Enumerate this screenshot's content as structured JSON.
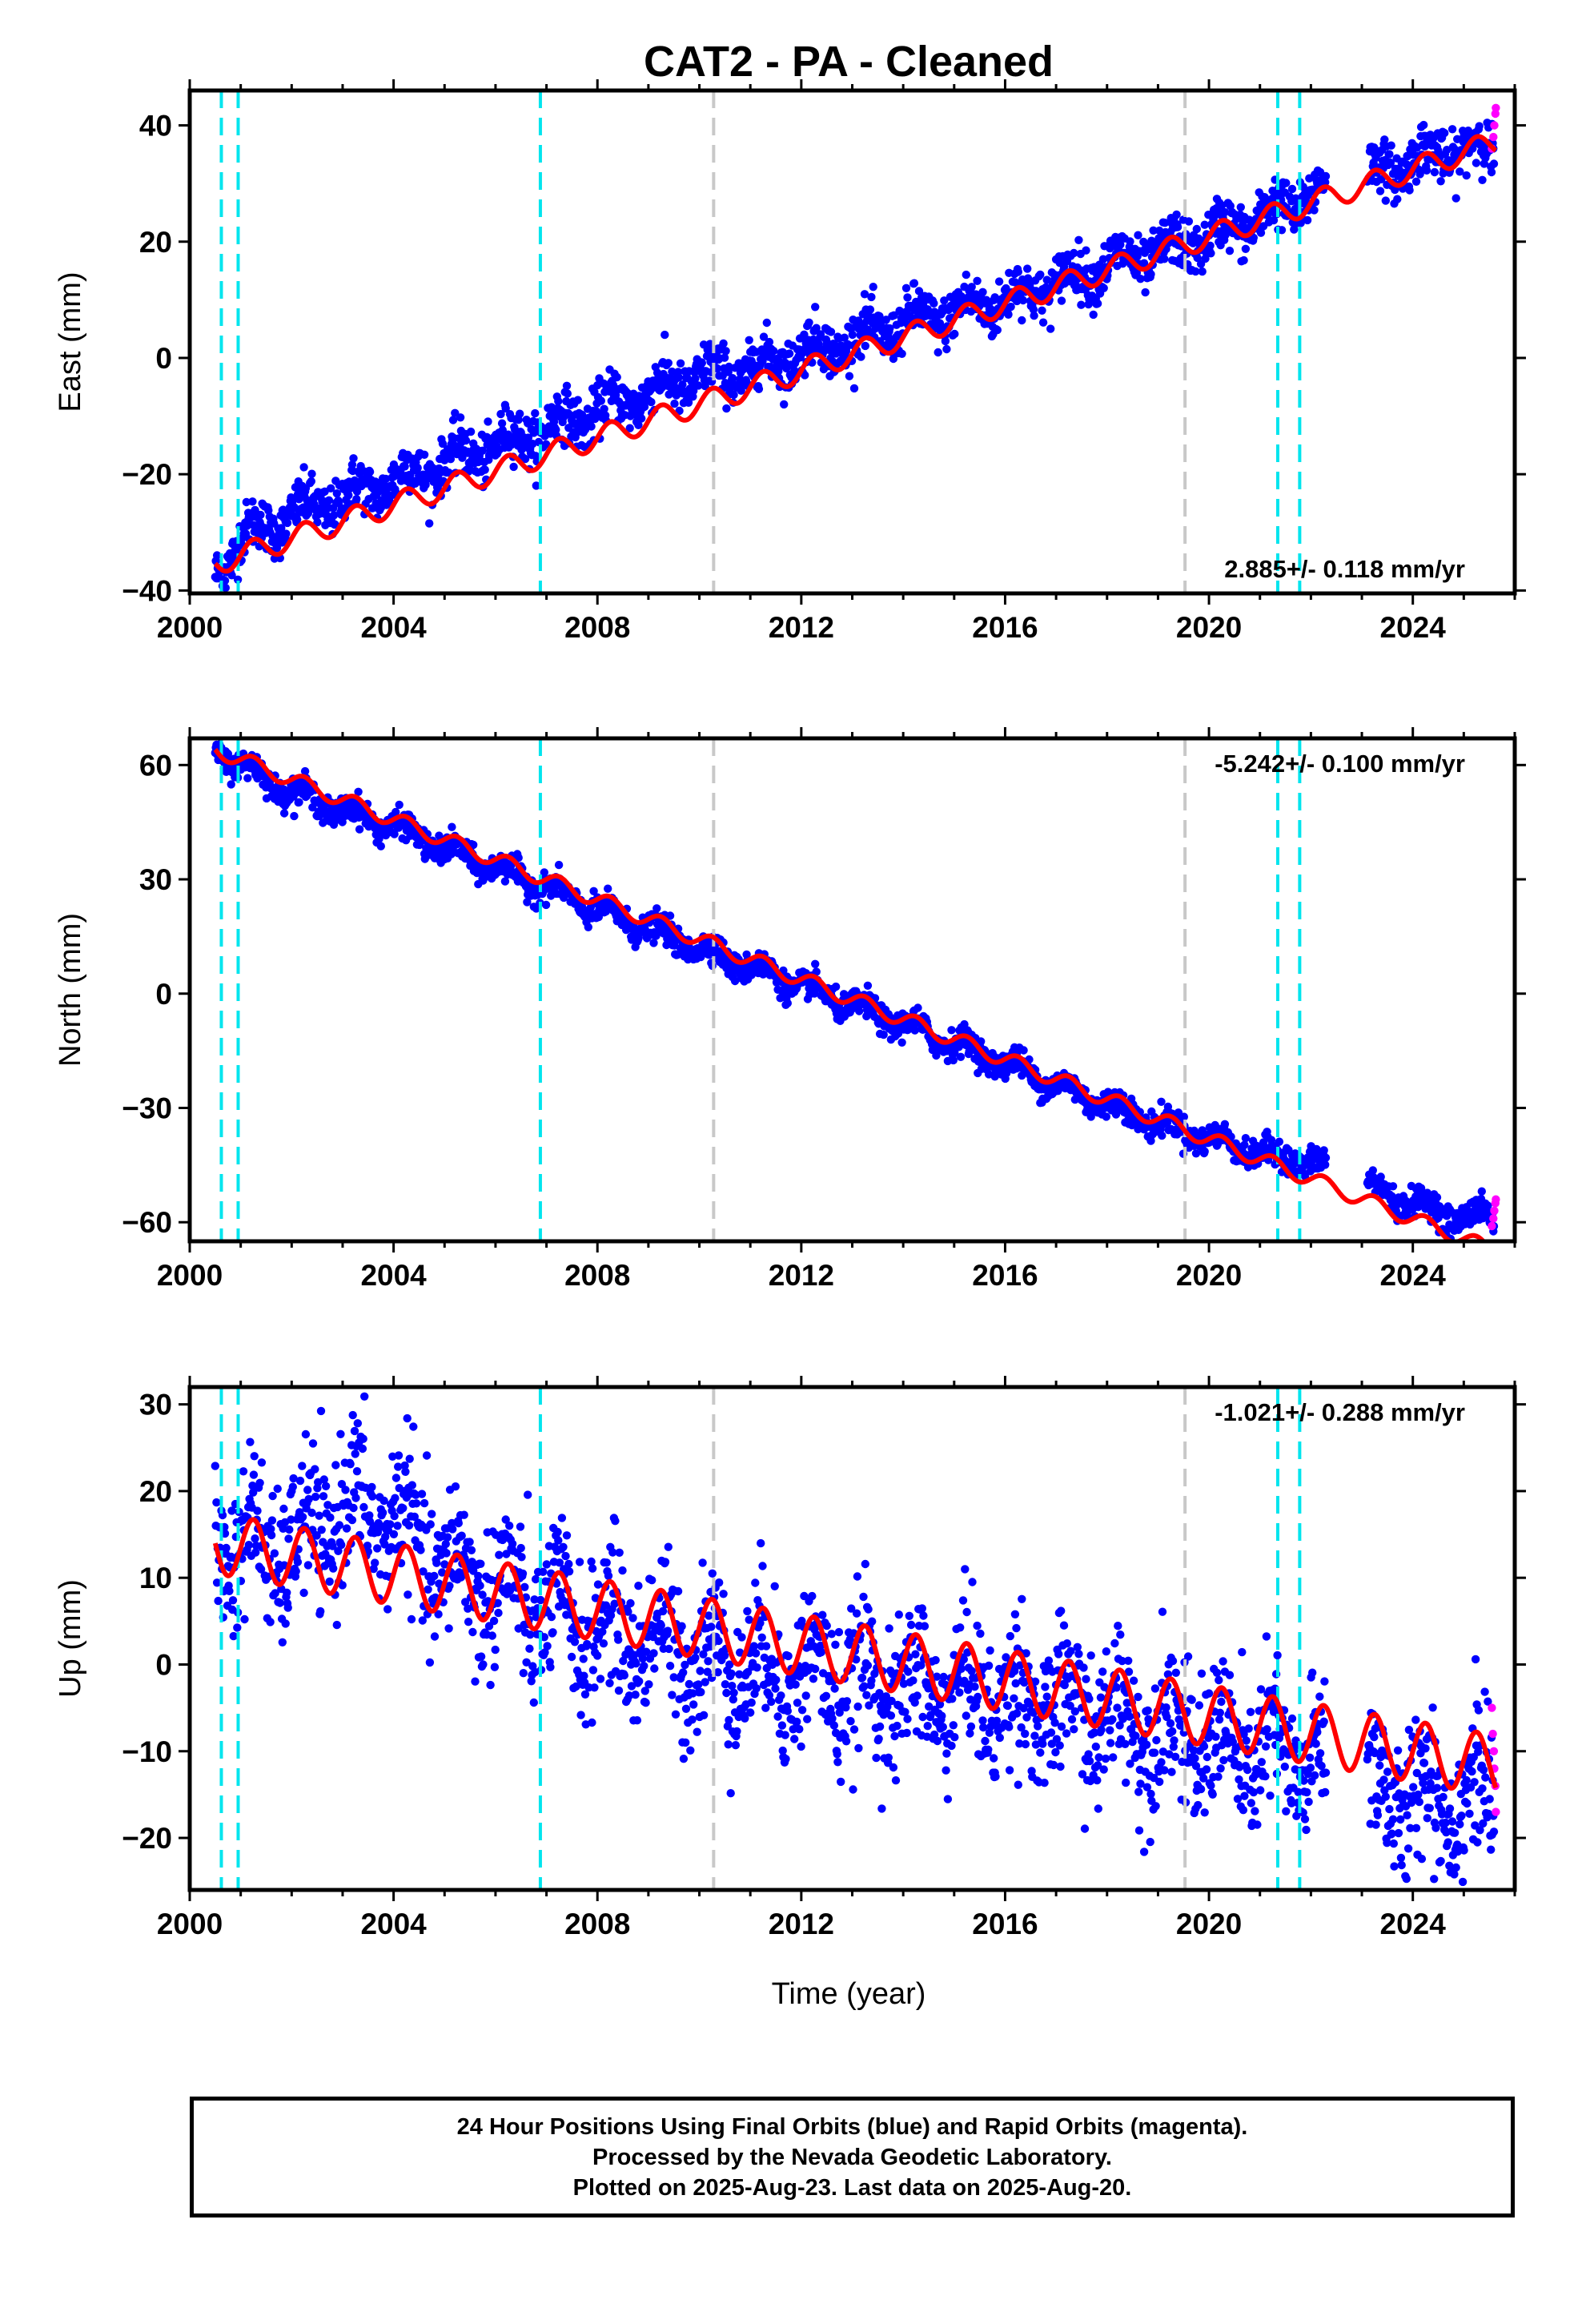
{
  "title": "CAT2  - PA - Cleaned",
  "colors": {
    "final_points": "#0000ff",
    "rapid_points": "#ff00ff",
    "model_line": "#ff0000",
    "equipment_change": "#00e5ee",
    "earthquake_line": "#c8c8c8",
    "frame": "#000000"
  },
  "shared_axis": {
    "xlabel": "Time (year)",
    "xlim": [
      2000,
      2026
    ],
    "xticks": [
      "2000",
      "2004",
      "2008",
      "2012",
      "2016",
      "2020",
      "2024"
    ]
  },
  "equipment_change_years": [
    2000.62,
    2000.95,
    2006.88,
    2021.35,
    2021.78
  ],
  "earthquake_line_years": [
    2010.28,
    2019.53
  ],
  "caption": {
    "line1": "24 Hour Positions Using Final Orbits (blue) and Rapid Orbits (magenta).",
    "line2": "Processed by the Nevada Geodetic Laboratory.",
    "line3": "Plotted on 2025-Aug-23. Last data on 2025-Aug-20."
  },
  "chart_data": [
    {
      "type": "scatter",
      "component": "East",
      "ylabel": "East (mm)",
      "ylim": [
        -40.5,
        46
      ],
      "yticks": [
        "40",
        "20",
        "0",
        "−20",
        "−40"
      ],
      "ytick_values": [
        40,
        20,
        0,
        -20,
        -40
      ],
      "rate_label": "2.885+/- 0.118 mm/yr",
      "rate_position": "bottom-right",
      "series": [
        {
          "name": "Final Orbits (blue)",
          "x": [
            2000.5,
            2001.0,
            2002.0,
            2003.0,
            2004.0,
            2005.0,
            2006.0,
            2007.0,
            2008.0,
            2009.0,
            2010.0,
            2011.0,
            2012.0,
            2013.0,
            2014.0,
            2015.0,
            2016.0,
            2017.0,
            2018.0,
            2019.0,
            2020.0,
            2021.0,
            2022.0,
            2023.0,
            2024.0,
            2025.0,
            2025.6
          ],
          "y": [
            -37,
            -31,
            -27,
            -24,
            -21,
            -18,
            -15,
            -12,
            -9,
            -6,
            -3,
            -2,
            1,
            3,
            6,
            8,
            10,
            13,
            16,
            18,
            21,
            24,
            28,
            31,
            34,
            36,
            36
          ],
          "scatter": 2.2
        },
        {
          "name": "Rapid Orbits (magenta)",
          "x": [
            2025.55,
            2025.58,
            2025.6,
            2025.62,
            2025.63
          ],
          "y": [
            36,
            38,
            40,
            42,
            43
          ]
        },
        {
          "name": "Model fit",
          "slope": 2.885,
          "intercept_at_2000": -36.8,
          "seasonal_amplitude": 2.0,
          "x_range": [
            2000.5,
            2025.63
          ]
        }
      ]
    },
    {
      "type": "scatter",
      "component": "North",
      "ylabel": "North (mm)",
      "ylim": [
        -65,
        67
      ],
      "yticks": [
        "60",
        "30",
        "0",
        "−30",
        "−60"
      ],
      "ytick_values": [
        60,
        30,
        0,
        -30,
        -60
      ],
      "rate_label": "-5.242+/- 0.100 mm/yr",
      "rate_position": "top-right",
      "series": [
        {
          "name": "Final Orbits (blue)",
          "x": [
            2000.5,
            2001.0,
            2002.0,
            2003.0,
            2004.0,
            2005.0,
            2006.0,
            2007.0,
            2008.0,
            2009.0,
            2010.0,
            2011.0,
            2012.0,
            2013.0,
            2014.0,
            2015.0,
            2016.0,
            2017.0,
            2018.0,
            2019.0,
            2020.0,
            2021.0,
            2022.0,
            2023.0,
            2024.0,
            2025.0,
            2025.6
          ],
          "y": [
            64,
            60,
            53,
            48,
            44,
            38,
            33,
            28,
            22,
            17,
            12,
            7,
            2,
            -3,
            -8,
            -13,
            -18,
            -24,
            -29,
            -34,
            -38,
            -42,
            -44,
            -50,
            -55,
            -59,
            -58
          ],
          "scatter": 1.8
        },
        {
          "name": "Rapid Orbits (magenta)",
          "x": [
            2025.55,
            2025.58,
            2025.6,
            2025.62,
            2025.63
          ],
          "y": [
            -61,
            -59,
            -57,
            -55,
            -54
          ]
        },
        {
          "name": "Model fit",
          "slope": -5.242,
          "intercept_at_2000": 66.7,
          "seasonal_amplitude": 2.0,
          "x_range": [
            2000.5,
            2025.63
          ]
        }
      ]
    },
    {
      "type": "scatter",
      "component": "Up",
      "ylabel": "Up (mm)",
      "ylim": [
        -26,
        32
      ],
      "yticks": [
        "30",
        "20",
        "10",
        "0",
        "−10",
        "−20"
      ],
      "ytick_values": [
        30,
        20,
        10,
        0,
        -10,
        -20
      ],
      "rate_label": "-1.021+/- 0.288 mm/yr",
      "rate_position": "top-right",
      "series": [
        {
          "name": "Final Orbits (blue)",
          "x": [
            2000.5,
            2001.0,
            2002.0,
            2003.0,
            2004.0,
            2005.0,
            2006.0,
            2007.0,
            2008.0,
            2009.0,
            2010.0,
            2011.0,
            2012.0,
            2013.0,
            2014.0,
            2015.0,
            2016.0,
            2017.0,
            2018.0,
            2019.0,
            2020.0,
            2021.0,
            2022.0,
            2023.0,
            2024.0,
            2025.0,
            2025.6
          ],
          "y": [
            15,
            14,
            13,
            18,
            17,
            11,
            9,
            6,
            4,
            3,
            1,
            0,
            -1,
            -2,
            -3,
            -3,
            -4,
            -5,
            -6,
            -7,
            -9,
            -10,
            -11,
            -14,
            -15,
            -15,
            -16
          ],
          "scatter": 4.2
        },
        {
          "name": "Rapid Orbits (magenta)",
          "x": [
            2025.55,
            2025.57,
            2025.59,
            2025.6,
            2025.62,
            2025.63
          ],
          "y": [
            -5,
            -8,
            -10,
            -12,
            -14,
            -17
          ]
        },
        {
          "name": "Model fit",
          "slope": -1.021,
          "intercept_at_2000": 14.5,
          "seasonal_amplitude": 3.5,
          "x_range": [
            2000.5,
            2025.63
          ]
        }
      ]
    }
  ]
}
